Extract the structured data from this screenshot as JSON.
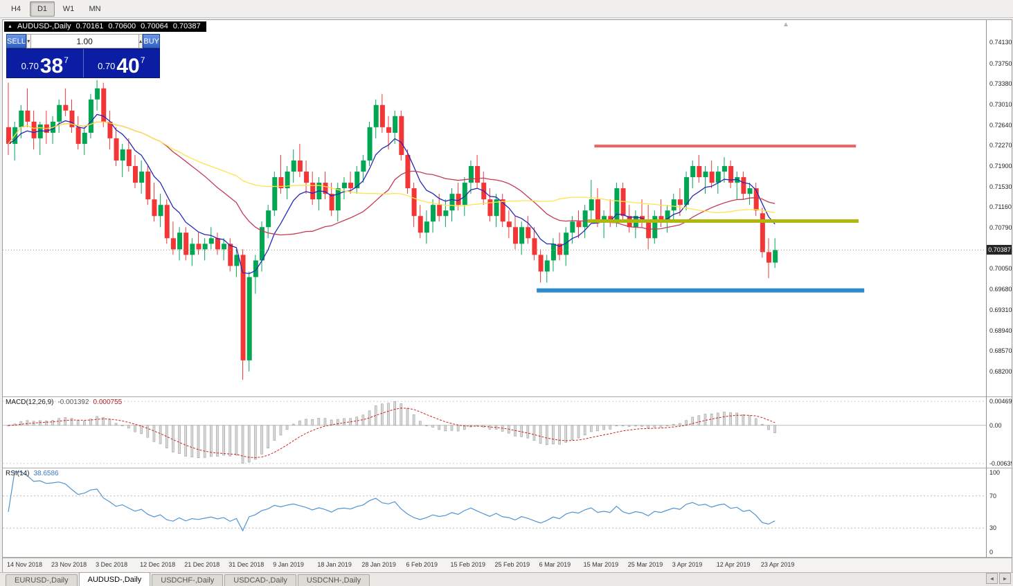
{
  "icons": {
    "volume_down": "▾",
    "volume_up": "▴",
    "scroll_end": "▲",
    "tab_prev": "◄",
    "tab_next": "►",
    "header_marker": "▲"
  },
  "toolbar": {
    "timeframes": [
      {
        "label": "H4",
        "active": false
      },
      {
        "label": "D1",
        "active": true
      },
      {
        "label": "W1",
        "active": false
      },
      {
        "label": "MN",
        "active": false
      }
    ]
  },
  "chart_header": {
    "symbol": "AUDUSD-,Daily",
    "open": "0.70161",
    "high": "0.70600",
    "low": "0.70064",
    "close": "0.70387"
  },
  "trade_panel": {
    "sell_label": "SELL",
    "buy_label": "BUY",
    "volume": "1.00",
    "sell_price": {
      "prefix": "0.70",
      "big": "38",
      "pip": "7"
    },
    "buy_price": {
      "prefix": "0.70",
      "big": "40",
      "pip": "7"
    }
  },
  "price_axis": {
    "labels": [
      "0.74130",
      "0.73750",
      "0.73380",
      "0.73010",
      "0.72640",
      "0.72270",
      "0.71900",
      "0.71530",
      "0.71160",
      "0.70790",
      "0.70420",
      "0.70050",
      "0.69680",
      "0.69310",
      "0.68940",
      "0.68570",
      "0.68200"
    ],
    "values": [
      0.7413,
      0.7375,
      0.7338,
      0.7301,
      0.7264,
      0.7227,
      0.719,
      0.7153,
      0.7116,
      0.7079,
      0.7042,
      0.7005,
      0.6968,
      0.6931,
      0.6894,
      0.6857,
      0.682
    ],
    "current_label": "0.70387",
    "current_value": 0.70387
  },
  "chart_data": {
    "type": "candlestick",
    "title": "AUDUSD Daily",
    "y_max": 0.7453,
    "y_min": 0.6775,
    "up_color": "#00a651",
    "down_color": "#f23535",
    "ohlc": [
      [
        0.726,
        0.734,
        0.721,
        0.723
      ],
      [
        0.723,
        0.727,
        0.72,
        0.726
      ],
      [
        0.726,
        0.73,
        0.724,
        0.729
      ],
      [
        0.729,
        0.733,
        0.726,
        0.727
      ],
      [
        0.727,
        0.729,
        0.722,
        0.724
      ],
      [
        0.724,
        0.727,
        0.721,
        0.7265
      ],
      [
        0.7265,
        0.729,
        0.723,
        0.725
      ],
      [
        0.725,
        0.728,
        0.723,
        0.727
      ],
      [
        0.727,
        0.731,
        0.725,
        0.73
      ],
      [
        0.73,
        0.733,
        0.728,
        0.729
      ],
      [
        0.729,
        0.731,
        0.725,
        0.726
      ],
      [
        0.726,
        0.728,
        0.722,
        0.723
      ],
      [
        0.723,
        0.726,
        0.721,
        0.725
      ],
      [
        0.725,
        0.732,
        0.724,
        0.731
      ],
      [
        0.731,
        0.7345,
        0.729,
        0.733
      ],
      [
        0.733,
        0.734,
        0.726,
        0.727
      ],
      [
        0.727,
        0.729,
        0.722,
        0.724
      ],
      [
        0.724,
        0.726,
        0.719,
        0.72
      ],
      [
        0.72,
        0.723,
        0.717,
        0.722
      ],
      [
        0.722,
        0.724,
        0.718,
        0.719
      ],
      [
        0.719,
        0.721,
        0.715,
        0.716
      ],
      [
        0.716,
        0.72,
        0.714,
        0.718
      ],
      [
        0.718,
        0.719,
        0.712,
        0.713
      ],
      [
        0.713,
        0.716,
        0.709,
        0.71
      ],
      [
        0.71,
        0.714,
        0.708,
        0.712
      ],
      [
        0.712,
        0.713,
        0.705,
        0.706
      ],
      [
        0.706,
        0.709,
        0.703,
        0.704
      ],
      [
        0.704,
        0.708,
        0.702,
        0.707
      ],
      [
        0.707,
        0.708,
        0.702,
        0.703
      ],
      [
        0.703,
        0.706,
        0.701,
        0.705
      ],
      [
        0.705,
        0.707,
        0.703,
        0.704
      ],
      [
        0.704,
        0.706,
        0.702,
        0.705
      ],
      [
        0.705,
        0.708,
        0.704,
        0.706
      ],
      [
        0.706,
        0.707,
        0.703,
        0.704
      ],
      [
        0.704,
        0.706,
        0.702,
        0.705
      ],
      [
        0.705,
        0.706,
        0.7,
        0.701
      ],
      [
        0.701,
        0.704,
        0.699,
        0.703
      ],
      [
        0.703,
        0.704,
        0.6805,
        0.684
      ],
      [
        0.684,
        0.7,
        0.682,
        0.699
      ],
      [
        0.699,
        0.703,
        0.696,
        0.702
      ],
      [
        0.702,
        0.709,
        0.7,
        0.708
      ],
      [
        0.708,
        0.712,
        0.706,
        0.711
      ],
      [
        0.711,
        0.718,
        0.71,
        0.717
      ],
      [
        0.717,
        0.721,
        0.714,
        0.715
      ],
      [
        0.715,
        0.719,
        0.713,
        0.718
      ],
      [
        0.718,
        0.722,
        0.716,
        0.72
      ],
      [
        0.72,
        0.723,
        0.717,
        0.718
      ],
      [
        0.718,
        0.72,
        0.714,
        0.716
      ],
      [
        0.716,
        0.718,
        0.712,
        0.713
      ],
      [
        0.713,
        0.717,
        0.711,
        0.716
      ],
      [
        0.716,
        0.718,
        0.713,
        0.714
      ],
      [
        0.714,
        0.716,
        0.71,
        0.711
      ],
      [
        0.711,
        0.716,
        0.709,
        0.715
      ],
      [
        0.715,
        0.717,
        0.713,
        0.716
      ],
      [
        0.716,
        0.718,
        0.714,
        0.715
      ],
      [
        0.715,
        0.719,
        0.714,
        0.718
      ],
      [
        0.718,
        0.721,
        0.716,
        0.72
      ],
      [
        0.72,
        0.727,
        0.719,
        0.726
      ],
      [
        0.726,
        0.731,
        0.724,
        0.73
      ],
      [
        0.73,
        0.732,
        0.725,
        0.726
      ],
      [
        0.726,
        0.728,
        0.722,
        0.725
      ],
      [
        0.725,
        0.729,
        0.723,
        0.728
      ],
      [
        0.728,
        0.729,
        0.72,
        0.721
      ],
      [
        0.721,
        0.722,
        0.714,
        0.715
      ],
      [
        0.715,
        0.716,
        0.708,
        0.71
      ],
      [
        0.71,
        0.712,
        0.706,
        0.707
      ],
      [
        0.707,
        0.711,
        0.705,
        0.709
      ],
      [
        0.709,
        0.713,
        0.707,
        0.712
      ],
      [
        0.712,
        0.714,
        0.709,
        0.71
      ],
      [
        0.71,
        0.713,
        0.708,
        0.711
      ],
      [
        0.711,
        0.715,
        0.709,
        0.714
      ],
      [
        0.714,
        0.716,
        0.711,
        0.712
      ],
      [
        0.712,
        0.717,
        0.71,
        0.716
      ],
      [
        0.716,
        0.72,
        0.714,
        0.719
      ],
      [
        0.719,
        0.721,
        0.715,
        0.716
      ],
      [
        0.716,
        0.718,
        0.712,
        0.713
      ],
      [
        0.713,
        0.715,
        0.709,
        0.71
      ],
      [
        0.71,
        0.714,
        0.708,
        0.713
      ],
      [
        0.713,
        0.714,
        0.708,
        0.709
      ],
      [
        0.709,
        0.711,
        0.706,
        0.708
      ],
      [
        0.708,
        0.71,
        0.704,
        0.705
      ],
      [
        0.705,
        0.709,
        0.703,
        0.708
      ],
      [
        0.708,
        0.71,
        0.705,
        0.706
      ],
      [
        0.706,
        0.708,
        0.702,
        0.703
      ],
      [
        0.703,
        0.704,
        0.698,
        0.7
      ],
      [
        0.7,
        0.703,
        0.698,
        0.702
      ],
      [
        0.702,
        0.706,
        0.7,
        0.705
      ],
      [
        0.705,
        0.707,
        0.702,
        0.703
      ],
      [
        0.703,
        0.708,
        0.701,
        0.707
      ],
      [
        0.707,
        0.71,
        0.705,
        0.709
      ],
      [
        0.709,
        0.711,
        0.706,
        0.708
      ],
      [
        0.708,
        0.712,
        0.706,
        0.711
      ],
      [
        0.711,
        0.7165,
        0.709,
        0.713
      ],
      [
        0.713,
        0.715,
        0.708,
        0.709
      ],
      [
        0.709,
        0.711,
        0.706,
        0.71
      ],
      [
        0.71,
        0.713,
        0.708,
        0.709
      ],
      [
        0.709,
        0.716,
        0.708,
        0.715
      ],
      [
        0.715,
        0.716,
        0.709,
        0.71
      ],
      [
        0.71,
        0.712,
        0.707,
        0.708
      ],
      [
        0.708,
        0.711,
        0.706,
        0.71
      ],
      [
        0.71,
        0.713,
        0.708,
        0.709
      ],
      [
        0.709,
        0.712,
        0.704,
        0.706
      ],
      [
        0.706,
        0.711,
        0.705,
        0.71
      ],
      [
        0.71,
        0.713,
        0.708,
        0.709
      ],
      [
        0.709,
        0.712,
        0.707,
        0.711
      ],
      [
        0.711,
        0.714,
        0.709,
        0.713
      ],
      [
        0.713,
        0.715,
        0.71,
        0.712
      ],
      [
        0.712,
        0.718,
        0.711,
        0.717
      ],
      [
        0.717,
        0.72,
        0.715,
        0.719
      ],
      [
        0.719,
        0.721,
        0.716,
        0.717
      ],
      [
        0.717,
        0.719,
        0.714,
        0.718
      ],
      [
        0.718,
        0.72,
        0.715,
        0.716
      ],
      [
        0.716,
        0.719,
        0.714,
        0.718
      ],
      [
        0.718,
        0.7206,
        0.716,
        0.719
      ],
      [
        0.719,
        0.72,
        0.715,
        0.716
      ],
      [
        0.716,
        0.718,
        0.713,
        0.717
      ],
      [
        0.717,
        0.718,
        0.713,
        0.714
      ],
      [
        0.714,
        0.716,
        0.712,
        0.715
      ],
      [
        0.715,
        0.716,
        0.71,
        0.711
      ],
      [
        0.7105,
        0.7115,
        0.7025,
        0.7035
      ],
      [
        0.7035,
        0.706,
        0.6988,
        0.7016
      ],
      [
        0.70161,
        0.706,
        0.70064,
        0.70387
      ]
    ],
    "moving_averages": [
      {
        "name": "ma-fast",
        "method": "ema",
        "period": 8,
        "color": "#2428b8"
      },
      {
        "name": "ma-mid",
        "method": "sma",
        "period": 24,
        "color": "#c23a55"
      },
      {
        "name": "ma-slow",
        "method": "sma",
        "period": 50,
        "color": "#ffe34d"
      }
    ],
    "hlines": [
      {
        "name": "resistance-line",
        "price": 0.7226,
        "from_index": 92.5,
        "to_index": 133.8,
        "color": "#f26060",
        "width": 4
      },
      {
        "name": "mid-support-line",
        "price": 0.7091,
        "from_index": 91.5,
        "to_index": 134.2,
        "color": "#aeb70a",
        "width": 5
      },
      {
        "name": "lower-support-line",
        "price": 0.6966,
        "from_index": 83.4,
        "to_index": 135.1,
        "color": "#2f8ccc",
        "width": 6
      }
    ],
    "indicators": {
      "macd": {
        "fast": 12,
        "slow": 26,
        "signal": 9
      },
      "rsi": {
        "period": 14
      }
    }
  },
  "macd_panel": {
    "label": "MACD(12,26,9)",
    "value_main": "-0.001392",
    "value_signal": "0.000755",
    "axis_labels": {
      "top": "0.004694",
      "zero": "0.00",
      "bottom": "-0.00639"
    }
  },
  "rsi_panel": {
    "label": "RSI(14)",
    "value": "38.6586",
    "axis_labels": {
      "top": "100",
      "upper": "70",
      "lower": "30",
      "bottom": "0"
    },
    "levels": [
      70,
      30
    ]
  },
  "date_axis": {
    "labels": [
      "14 Nov 2018",
      "23 Nov 2018",
      "3 Dec 2018",
      "12 Dec 2018",
      "21 Dec 2018",
      "31 Dec 2018",
      "9 Jan 2019",
      "18 Jan 2019",
      "28 Jan 2019",
      "6 Feb 2019",
      "15 Feb 2019",
      "25 Feb 2019",
      "6 Mar 2019",
      "15 Mar 2019",
      "25 Mar 2019",
      "3 Apr 2019",
      "12 Apr 2019",
      "23 Apr 2019"
    ],
    "indices": [
      0,
      7,
      14,
      21,
      28,
      35,
      42,
      49,
      56,
      63,
      70,
      77,
      84,
      91,
      98,
      105,
      112,
      119
    ]
  },
  "bottom_tabs": {
    "tabs": [
      {
        "label": "EURUSD-,Daily",
        "active": false
      },
      {
        "label": "AUDUSD-,Daily",
        "active": true
      },
      {
        "label": "USDCHF-,Daily",
        "active": false
      },
      {
        "label": "USDCAD-,Daily",
        "active": false
      },
      {
        "label": "USDCNH-,Daily",
        "active": false
      }
    ]
  }
}
